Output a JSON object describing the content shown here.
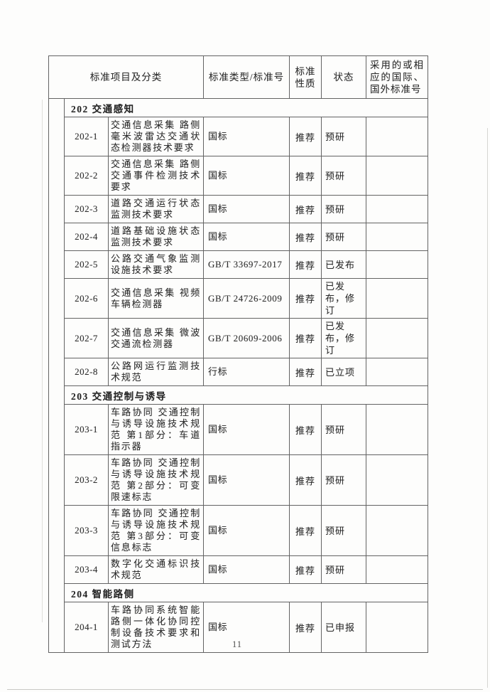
{
  "page": {
    "number": "11"
  },
  "table": {
    "headers": {
      "project": "标准项目及分类",
      "type": "标准类型/标准号",
      "nature": "标准性质",
      "status": "状态",
      "intl": "采用的或相应的国际、国外标准号"
    },
    "sections": [
      {
        "title": "202 交通感知",
        "rows": [
          {
            "id": "202-1",
            "name": "交通信息采集 路侧毫米波雷达交通状态检测器技术要求",
            "type": "国标",
            "nature": "推荐",
            "status": "预研",
            "intl": ""
          },
          {
            "id": "202-2",
            "name": "交通信息采集 路侧交通事件检测技术要求",
            "type": "国标",
            "nature": "推荐",
            "status": "预研",
            "intl": ""
          },
          {
            "id": "202-3",
            "name": "道路交通运行状态监测技术要求",
            "type": "国标",
            "nature": "推荐",
            "status": "预研",
            "intl": ""
          },
          {
            "id": "202-4",
            "name": "道路基础设施状态监测技术要求",
            "type": "国标",
            "nature": "推荐",
            "status": "预研",
            "intl": ""
          },
          {
            "id": "202-5",
            "name": "公路交通气象监测设施技术要求",
            "type": "GB/T 33697-2017",
            "nature": "推荐",
            "status": "已发布",
            "intl": ""
          },
          {
            "id": "202-6",
            "name": "交通信息采集 视频车辆检测器",
            "type": "GB/T 24726-2009",
            "nature": "推荐",
            "status": "已发布，修订",
            "intl": ""
          },
          {
            "id": "202-7",
            "name": "交通信息采集 微波交通流检测器",
            "type": "GB/T 20609-2006",
            "nature": "推荐",
            "status": "已发布，修订",
            "intl": ""
          },
          {
            "id": "202-8",
            "name": "公路网运行监测技术规范",
            "type": "行标",
            "nature": "推荐",
            "status": "已立项",
            "intl": ""
          }
        ]
      },
      {
        "title": "203 交通控制与诱导",
        "rows": [
          {
            "id": "203-1",
            "name": "车路协同 交通控制与诱导设施技术规范 第1部分：车道指示器",
            "type": "国标",
            "nature": "推荐",
            "status": "预研",
            "intl": ""
          },
          {
            "id": "203-2",
            "name": "车路协同 交通控制与诱导设施技术规范 第2部分：可变限速标志",
            "type": "国标",
            "nature": "推荐",
            "status": "预研",
            "intl": ""
          },
          {
            "id": "203-3",
            "name": "车路协同 交通控制与诱导设施技术规范 第3部分：可变信息标志",
            "type": "国标",
            "nature": "推荐",
            "status": "预研",
            "intl": ""
          },
          {
            "id": "203-4",
            "name": "数字化交通标识技术规范",
            "type": "国标",
            "nature": "推荐",
            "status": "预研",
            "intl": ""
          }
        ]
      },
      {
        "title": "204 智能路侧",
        "rows": [
          {
            "id": "204-1",
            "name": "车路协同系统智能路侧一体化协同控制设备技术要求和测试方法",
            "type": "国标",
            "nature": "推荐",
            "status": "已申报",
            "intl": ""
          }
        ]
      }
    ]
  }
}
